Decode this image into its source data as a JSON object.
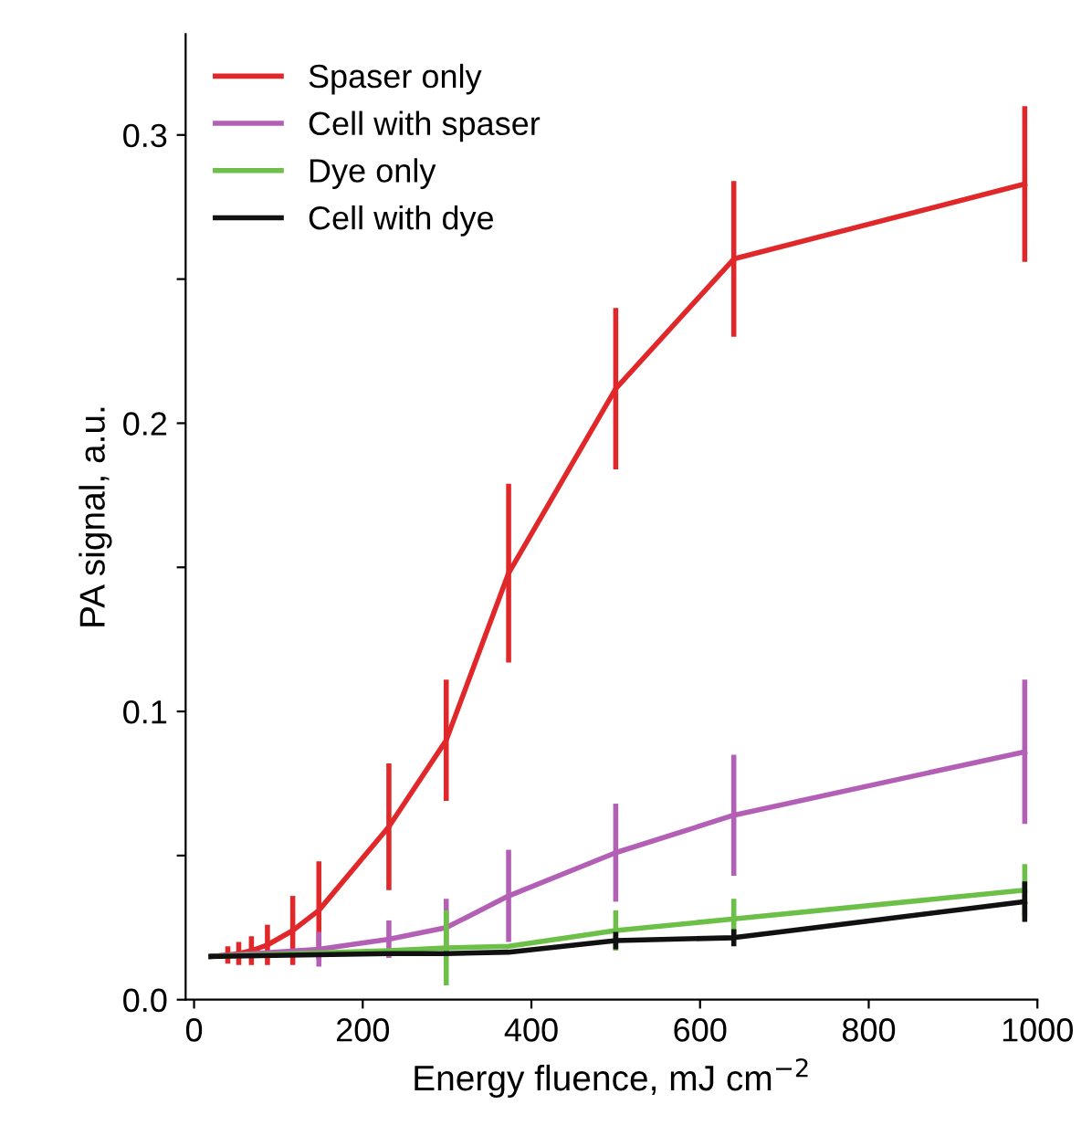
{
  "chart_data": {
    "type": "line",
    "xlabel": "Energy fluence, mJ cm$^{−2}$",
    "ylabel": "PA signal, a.u.",
    "xlim": [
      -10,
      1000
    ],
    "ylim": [
      0,
      0.335
    ],
    "xticks": [
      0,
      200,
      400,
      600,
      800,
      1000
    ],
    "yticks": [
      {
        "value": 0,
        "label": "0.0"
      },
      {
        "value": 0.05,
        "label": null
      },
      0.1,
      {
        "value": 0.15,
        "label": null
      },
      0.2,
      {
        "value": 0.25,
        "label": null
      },
      0.3
    ],
    "grid": false,
    "legend": "top left",
    "marker": "none",
    "line_style": "solid",
    "series": [
      {
        "name": "Spaser only",
        "color": "#e0282a",
        "x": [
          20,
          40,
          53,
          68,
          87,
          117,
          148,
          231,
          299,
          373,
          500,
          640,
          985
        ],
        "values": [
          0.015,
          0.0155,
          0.016,
          0.017,
          0.019,
          0.024,
          0.031,
          0.06,
          0.09,
          0.148,
          0.212,
          0.257,
          0.283
        ],
        "errors": [
          null,
          0.003,
          0.004,
          0.005,
          0.007,
          0.012,
          0.017,
          0.022,
          0.021,
          0.031,
          0.028,
          0.027,
          0.027
        ]
      },
      {
        "name": "Cell with spaser",
        "color": "#b25fb5",
        "x": [
          20,
          148,
          231,
          299,
          373,
          500,
          640,
          985
        ],
        "values": [
          0.015,
          0.0175,
          0.021,
          0.025,
          0.036,
          0.051,
          0.064,
          0.086
        ],
        "errors": [
          null,
          0.006,
          0.0065,
          0.01,
          0.016,
          0.017,
          0.021,
          0.025
        ]
      },
      {
        "name": "Dye only",
        "color": "#6cbf47",
        "x": [
          20,
          231,
          299,
          373,
          500,
          640,
          985
        ],
        "values": [
          0.015,
          0.017,
          0.018,
          0.0185,
          0.024,
          0.028,
          0.038
        ],
        "errors": [
          null,
          null,
          0.013,
          null,
          0.007,
          0.007,
          0.009
        ]
      },
      {
        "name": "Cell with dye",
        "color": "#111111",
        "x": [
          20,
          231,
          299,
          373,
          500,
          640,
          985
        ],
        "values": [
          0.015,
          0.016,
          0.016,
          0.0165,
          0.0205,
          0.0215,
          0.034
        ],
        "errors": [
          null,
          null,
          null,
          null,
          0.003,
          0.003,
          0.007
        ]
      }
    ]
  }
}
